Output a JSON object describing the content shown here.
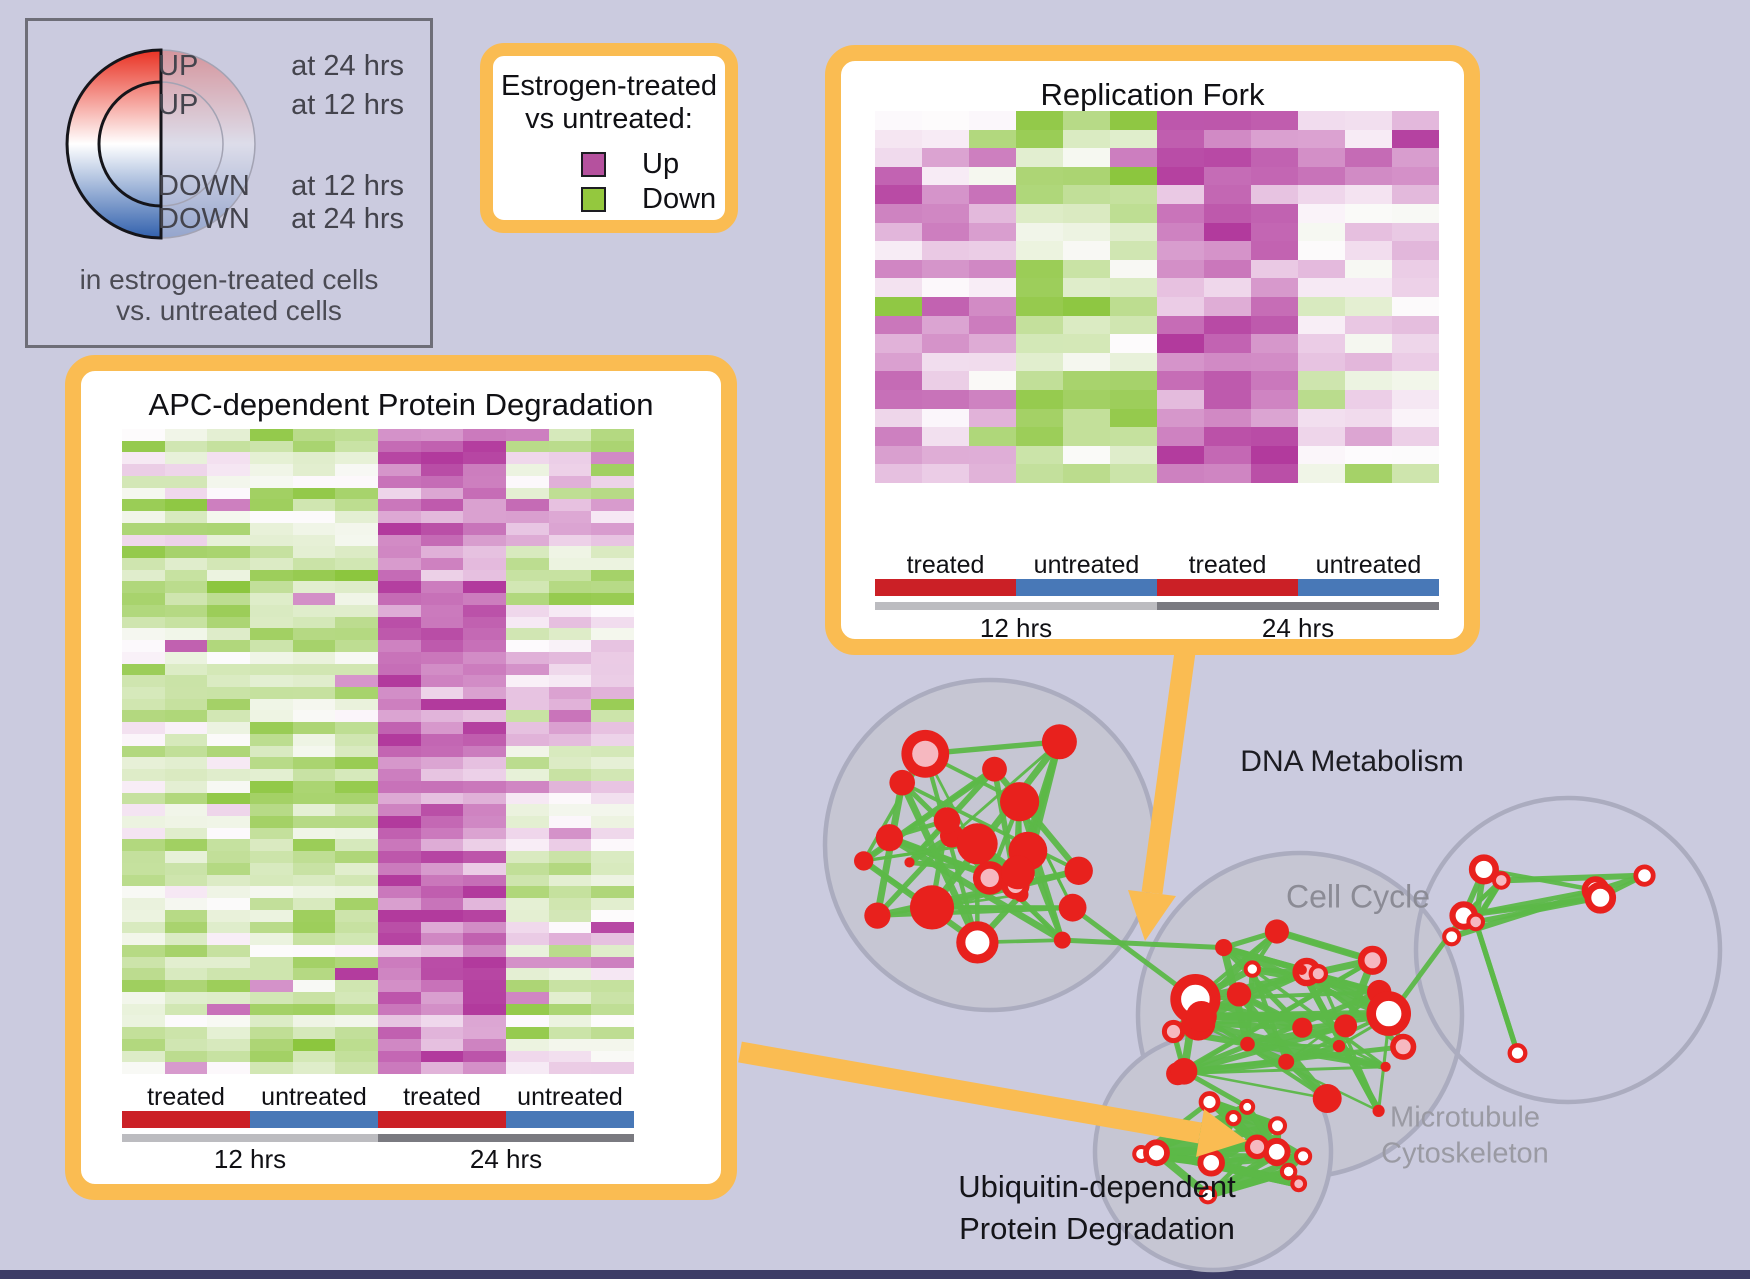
{
  "figure": {
    "background": "#cbcbdf",
    "bottom_bar_color": "#3c3c66"
  },
  "node_legend": {
    "rows": [
      {
        "direction": "UP",
        "time": "at 24 hrs"
      },
      {
        "direction": "UP",
        "time": "at 12 hrs"
      },
      {
        "direction": "DOWN",
        "time": "at 12 hrs"
      },
      {
        "direction": "DOWN",
        "time": "at 24 hrs"
      }
    ],
    "footnote_line1": "in estrogen-treated cells",
    "footnote_line2": "vs. untreated cells",
    "gradient_up_color": "#e93223",
    "gradient_mid_color": "#ffffff",
    "gradient_down_color": "#3261ad"
  },
  "color_legend": {
    "title_line1": "Estrogen-treated",
    "title_line2": "vs untreated:",
    "items": [
      {
        "label": "Up",
        "color": "#b5519e"
      },
      {
        "label": "Down",
        "color": "#94c83e"
      }
    ]
  },
  "replication_panel": {
    "title": "Replication Fork",
    "group_labels": [
      "treated",
      "untreated",
      "treated",
      "untreated"
    ],
    "time_labels": [
      "12 hrs",
      "24 hrs"
    ],
    "heatmap": {
      "rows": 20,
      "cols": 12,
      "seed": 7,
      "block_bias": [
        0.4,
        -0.55,
        0.7,
        0.15
      ],
      "block_spread": [
        0.8,
        0.6,
        0.6,
        1.2
      ]
    }
  },
  "apc_panel": {
    "title": "APC-dependent Protein Degradation",
    "group_labels": [
      "treated",
      "untreated",
      "treated",
      "untreated"
    ],
    "time_labels": [
      "12 hrs",
      "24 hrs"
    ],
    "heatmap": {
      "rows": 55,
      "cols": 12,
      "seed": 3,
      "block_bias": [
        -0.35,
        -0.45,
        0.72,
        -0.1
      ],
      "block_spread": [
        0.9,
        0.7,
        0.5,
        1.3
      ]
    }
  },
  "colors": {
    "panel_border": "#fabc52",
    "treated": "#cb2026",
    "untreated": "#4878b7",
    "time_12": "#bcbcc0",
    "time_24": "#7a7a80",
    "heatmap_up": "#b23a9d",
    "heatmap_down": "#8cc63e",
    "arrow": "#fabc52"
  },
  "network": {
    "labels": [
      {
        "id": "dna-metabolism",
        "text": "DNA Metabolism",
        "color": "#1c1c22"
      },
      {
        "id": "cell-cycle",
        "text": "Cell Cycle",
        "color": "#8b8b95"
      },
      {
        "id": "microtubule-line1",
        "text": "Microtubule",
        "color": "#9a9aa3"
      },
      {
        "id": "microtubule-line2",
        "text": "Cytoskeleton",
        "color": "#9a9aa3"
      },
      {
        "id": "ubiquitin-line1",
        "text": "Ubiquitin-dependent",
        "color": "#141419"
      },
      {
        "id": "ubiquitin-line2",
        "text": "Protein Degradation",
        "color": "#141419"
      }
    ],
    "clusters": [
      {
        "name": "dna-metabolism",
        "node_count": 22,
        "seed": 11
      },
      {
        "name": "cell-cycle",
        "node_count": 26,
        "seed": 22
      },
      {
        "name": "microtubule-cytoskeleton",
        "node_count": 9,
        "seed": 33
      },
      {
        "name": "ubiquitin-protein-degradation",
        "node_count": 14,
        "seed": 44
      }
    ],
    "edge_color": "#5cb848",
    "node_color": "#e8211d",
    "node_inner_pink": "#f6b8c0",
    "cluster_fill": "#c6c6d3",
    "cluster_stroke": "#abacbf"
  }
}
